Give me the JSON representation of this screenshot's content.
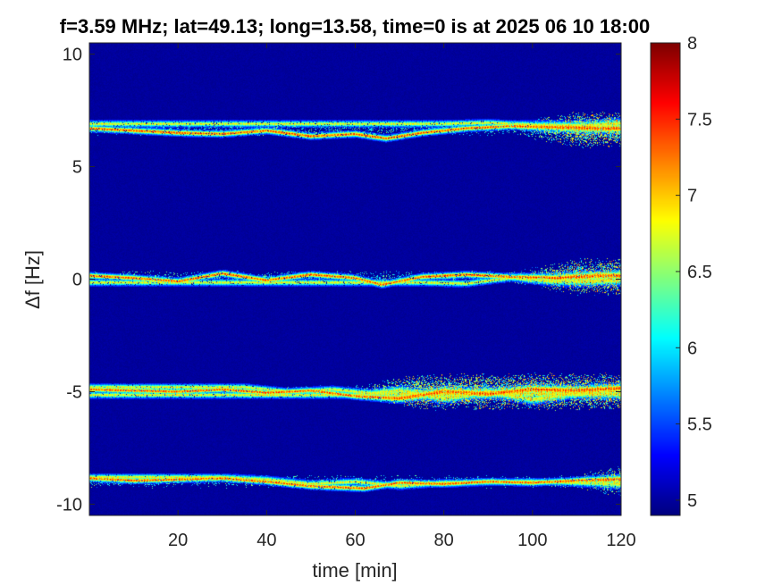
{
  "chart_data": {
    "type": "heatmap",
    "title": "f=3.59 MHz;  lat=49.13; long=13.58, time=0 is at 2025 06 10 18:00",
    "xlabel": "time [min]",
    "ylabel": "Δf [Hz]",
    "xlim": [
      0,
      120
    ],
    "ylim": [
      -10.5,
      10.5
    ],
    "x_ticks": [
      20,
      40,
      60,
      80,
      100,
      120
    ],
    "x_tick_labels": [
      "20",
      "40",
      "60",
      "80",
      "100",
      "120"
    ],
    "y_ticks": [
      -10,
      -5,
      0,
      5,
      10
    ],
    "y_tick_labels": [
      "-10",
      "-5",
      "0",
      "5",
      "10"
    ],
    "colorbar": {
      "colormap": "jet",
      "range": [
        4.9,
        8.0
      ],
      "ticks": [
        5,
        5.5,
        6,
        6.5,
        7,
        7.5,
        8
      ],
      "tick_labels": [
        "5",
        "5.5",
        "6",
        "6.5",
        "7",
        "7.5",
        "8"
      ]
    },
    "background_value": 4.95,
    "bands": [
      {
        "center": 6.65,
        "wobble": 0.15,
        "onset": 95,
        "traces": [
          {
            "x": [
              0,
              10,
              20,
              30,
              40,
              50,
              60,
              67,
              75,
              85,
              95,
              105,
              115,
              120
            ],
            "y": [
              6.7,
              6.6,
              6.5,
              6.45,
              6.6,
              6.35,
              6.45,
              6.25,
              6.5,
              6.7,
              6.8,
              6.75,
              6.7,
              6.7
            ]
          },
          {
            "x": [
              80,
              90,
              100,
              110,
              120
            ],
            "y": [
              6.9,
              6.95,
              6.85,
              6.8,
              6.9
            ]
          }
        ]
      },
      {
        "center": 0.1,
        "wobble": 0.15,
        "onset": 95,
        "traces": [
          {
            "x": [
              0,
              10,
              20,
              30,
              40,
              50,
              60,
              66,
              75,
              85,
              95,
              105,
              115,
              120
            ],
            "y": [
              0.15,
              0.05,
              -0.1,
              0.25,
              -0.05,
              0.2,
              0.05,
              -0.25,
              0.1,
              0.2,
              0.1,
              0.05,
              0.15,
              0.15
            ]
          },
          {
            "x": [
              75,
              85,
              95,
              105,
              120
            ],
            "y": [
              -0.15,
              -0.2,
              0.05,
              -0.1,
              -0.05
            ]
          }
        ]
      },
      {
        "center": -5.0,
        "wobble": 0.2,
        "onset": 60,
        "traces": [
          {
            "x": [
              0,
              10,
              20,
              30,
              40,
              50,
              60,
              70,
              80,
              90,
              100,
              110,
              120
            ],
            "y": [
              -4.9,
              -4.95,
              -5.0,
              -4.9,
              -5.05,
              -4.95,
              -5.2,
              -5.3,
              -5.0,
              -5.1,
              -4.9,
              -4.95,
              -4.85
            ]
          },
          {
            "x": [
              60,
              70,
              80,
              90,
              100,
              110,
              120
            ],
            "y": [
              -5.15,
              -4.95,
              -5.3,
              -5.0,
              -5.35,
              -5.05,
              -4.9
            ]
          },
          {
            "x": [
              35,
              45,
              55,
              65
            ],
            "y": [
              -4.8,
              -5.0,
              -4.9,
              -5.1
            ]
          }
        ]
      },
      {
        "center": -9.0,
        "wobble": 0.15,
        "onset": 108,
        "traces": [
          {
            "x": [
              0,
              10,
              20,
              30,
              40,
              50,
              62,
              70,
              80,
              90,
              100,
              110,
              120
            ],
            "y": [
              -8.85,
              -8.95,
              -8.9,
              -8.85,
              -9.0,
              -9.2,
              -9.3,
              -9.05,
              -9.1,
              -9.0,
              -9.05,
              -8.95,
              -8.9
            ]
          },
          {
            "x": [
              30,
              40,
              50,
              60,
              70,
              80,
              100,
              120
            ],
            "y": [
              -8.8,
              -8.9,
              -9.1,
              -9.0,
              -9.2,
              -9.05,
              -9.0,
              -9.1
            ]
          }
        ]
      }
    ]
  }
}
